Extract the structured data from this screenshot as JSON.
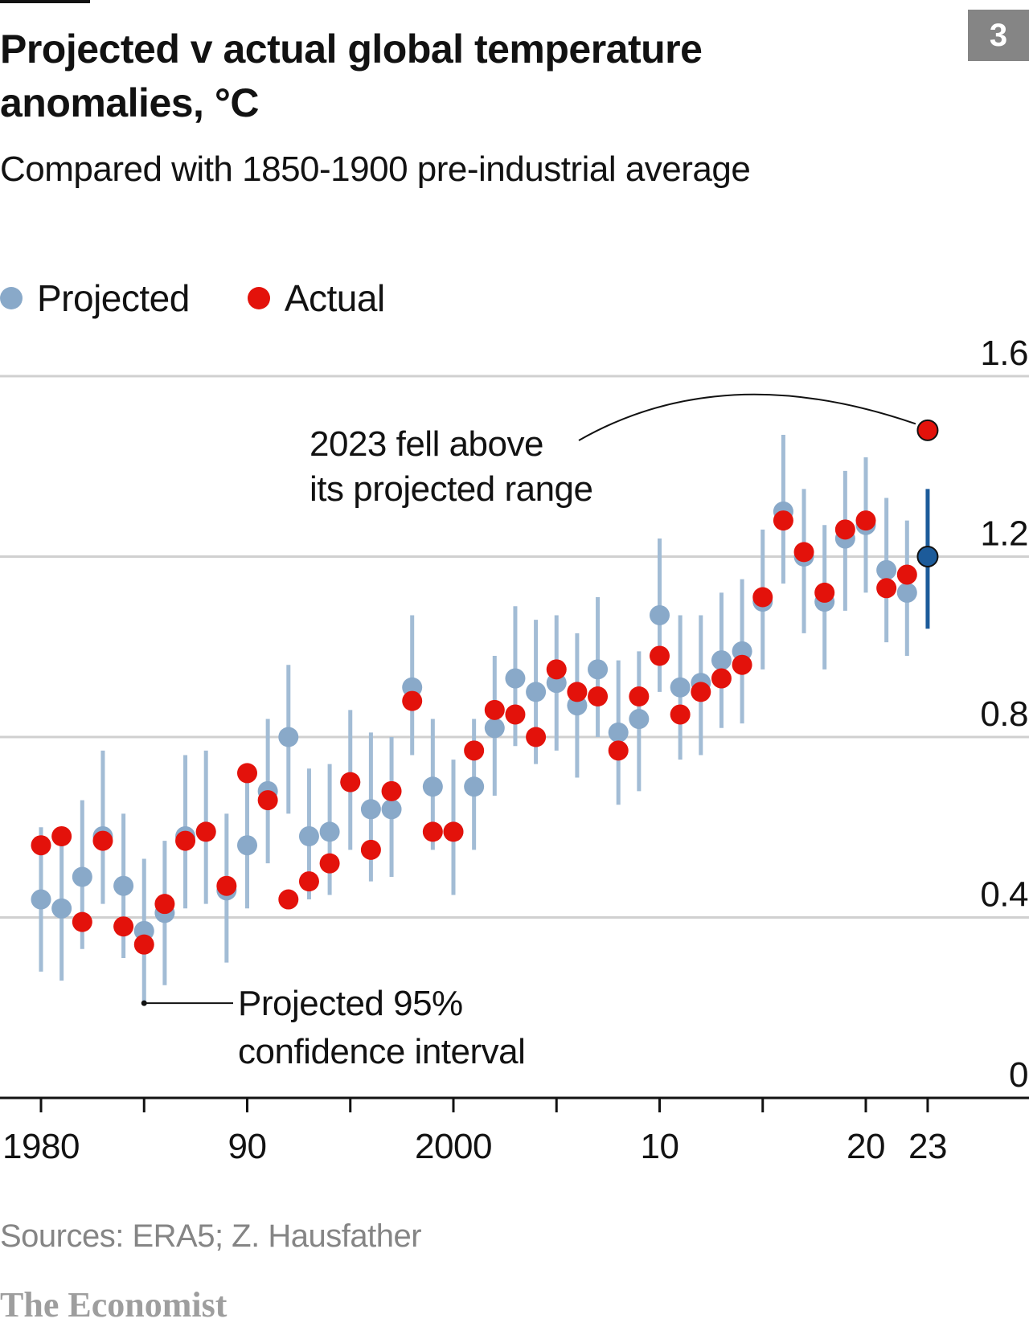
{
  "header": {
    "chart_number": "3",
    "title": "Projected v actual global temperature anomalies, °C",
    "subtitle": "Compared with 1850-1900 pre-industrial average"
  },
  "legend": {
    "projected_label": "Projected",
    "actual_label": "Actual"
  },
  "annotations": {
    "highlight_line1": "2023 fell above",
    "highlight_line2": "its projected range",
    "interval_line1": "Projected 95%",
    "interval_line2": "confidence interval"
  },
  "footer": {
    "source": "Sources: ERA5; Z. Hausfather",
    "brand": "The Economist"
  },
  "colors": {
    "projected": "#89a9c9",
    "projected_range": "#a2bcd5",
    "projected_highlight": "#1c5b9a",
    "actual": "#e3120b",
    "gridline": "#d0d0d0",
    "axis": "#121212"
  },
  "chart_data": {
    "type": "scatter",
    "title": "Projected v actual global temperature anomalies, °C",
    "subtitle": "Compared with 1850-1900 pre-industrial average",
    "x_range": [
      1980,
      2023
    ],
    "ylim": [
      0,
      1.6
    ],
    "y_ticks": [
      0,
      0.4,
      0.8,
      1.2,
      1.6
    ],
    "y_tick_labels": [
      "0",
      "0.4",
      "0.8",
      "1.2",
      "1.6"
    ],
    "x_tick_values": [
      1980,
      1990,
      2000,
      2010,
      2020,
      2023
    ],
    "x_tick_labels": [
      "1980",
      "90",
      "2000",
      "10",
      "20",
      "23"
    ],
    "minor_x_ticks": [
      1985,
      1995,
      2005,
      2015
    ],
    "grid": true,
    "legend_position": "top-left",
    "series": [
      {
        "name": "Projected",
        "x": [
          1980,
          1981,
          1982,
          1983,
          1984,
          1985,
          1986,
          1987,
          1988,
          1989,
          1990,
          1991,
          1992,
          1993,
          1994,
          1995,
          1996,
          1997,
          1998,
          1999,
          2000,
          2001,
          2002,
          2003,
          2004,
          2005,
          2006,
          2007,
          2008,
          2009,
          2010,
          2011,
          2012,
          2013,
          2014,
          2015,
          2016,
          2017,
          2018,
          2019,
          2020,
          2021,
          2022,
          2023
        ],
        "values": [
          0.44,
          0.42,
          0.49,
          0.58,
          0.47,
          0.37,
          0.41,
          0.58,
          0.59,
          0.46,
          0.56,
          0.68,
          0.8,
          0.58,
          0.59,
          0.7,
          0.64,
          0.64,
          0.91,
          0.69,
          0.59,
          0.69,
          0.82,
          0.93,
          0.9,
          0.92,
          0.87,
          0.95,
          0.81,
          0.84,
          1.07,
          0.91,
          0.92,
          0.97,
          0.99,
          1.1,
          1.3,
          1.2,
          1.1,
          1.24,
          1.27,
          1.17,
          1.12,
          1.2
        ],
        "lower": [
          0.28,
          0.26,
          0.33,
          0.43,
          0.31,
          0.21,
          0.25,
          0.42,
          0.43,
          0.3,
          0.42,
          0.52,
          0.63,
          0.44,
          0.45,
          0.55,
          0.48,
          0.49,
          0.76,
          0.55,
          0.45,
          0.55,
          0.67,
          0.78,
          0.74,
          0.77,
          0.71,
          0.8,
          0.65,
          0.68,
          0.9,
          0.75,
          0.76,
          0.82,
          0.83,
          0.95,
          1.14,
          1.03,
          0.95,
          1.08,
          1.12,
          1.01,
          0.98,
          1.04
        ],
        "upper": [
          0.6,
          0.58,
          0.66,
          0.77,
          0.63,
          0.53,
          0.57,
          0.76,
          0.77,
          0.63,
          0.72,
          0.84,
          0.96,
          0.73,
          0.74,
          0.86,
          0.81,
          0.8,
          1.07,
          0.84,
          0.75,
          0.84,
          0.98,
          1.09,
          1.06,
          1.07,
          1.03,
          1.11,
          0.97,
          0.99,
          1.24,
          1.07,
          1.07,
          1.12,
          1.15,
          1.26,
          1.47,
          1.35,
          1.27,
          1.39,
          1.42,
          1.33,
          1.28,
          1.35
        ]
      },
      {
        "name": "Actual",
        "x": [
          1980,
          1981,
          1982,
          1983,
          1984,
          1985,
          1986,
          1987,
          1988,
          1989,
          1990,
          1991,
          1992,
          1993,
          1994,
          1995,
          1996,
          1997,
          1998,
          1999,
          2000,
          2001,
          2002,
          2003,
          2004,
          2005,
          2006,
          2007,
          2008,
          2009,
          2010,
          2011,
          2012,
          2013,
          2014,
          2015,
          2016,
          2017,
          2018,
          2019,
          2020,
          2021,
          2022,
          2023
        ],
        "values": [
          0.56,
          0.58,
          0.39,
          0.57,
          0.38,
          0.34,
          0.43,
          0.57,
          0.59,
          0.47,
          0.72,
          0.66,
          0.44,
          0.48,
          0.52,
          0.7,
          0.55,
          0.68,
          0.88,
          0.59,
          0.59,
          0.77,
          0.86,
          0.85,
          0.8,
          0.95,
          0.9,
          0.89,
          0.77,
          0.89,
          0.98,
          0.85,
          0.9,
          0.93,
          0.96,
          1.11,
          1.28,
          1.21,
          1.12,
          1.26,
          1.28,
          1.13,
          1.16,
          1.48
        ]
      }
    ],
    "annotations": [
      {
        "text": "2023 fell above its projected range",
        "x": 2023,
        "y": 1.48
      },
      {
        "text": "Projected 95% confidence interval",
        "x": 1985,
        "y": 0.21
      }
    ]
  }
}
